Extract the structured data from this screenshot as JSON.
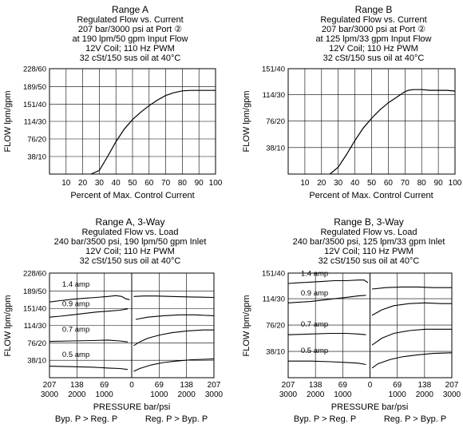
{
  "chart_data": [
    {
      "type": "line",
      "title": "Range A",
      "subtitle_lines": [
        "Regulated Flow vs. Current",
        "207 bar/3000 psi at Port ②",
        "at 190 lpm/50 gpm Input Flow",
        "12V Coil; 110 Hz PWM",
        "32 cSt/150 sus oil at 40°C"
      ],
      "xlabel": "Percent of Max. Control Current",
      "ylabel": "FLOW lpm/gpm",
      "xlim": [
        0,
        100
      ],
      "ylim": [
        0,
        228
      ],
      "x_ticks": [
        "10",
        "20",
        "30",
        "40",
        "50",
        "60",
        "70",
        "80",
        "90",
        "100"
      ],
      "y_ticks": [
        {
          "value": 38,
          "label": "38/10"
        },
        {
          "value": 76,
          "label": "76/20"
        },
        {
          "value": 114,
          "label": "114/30"
        },
        {
          "value": 151,
          "label": "151/40"
        },
        {
          "value": 189,
          "label": "189/50"
        },
        {
          "value": 228,
          "label": "228/60"
        }
      ],
      "grid": true,
      "series": [
        {
          "x": [
            25,
            30,
            35,
            40,
            45,
            50,
            55,
            60,
            65,
            70,
            75,
            80,
            85,
            90,
            95,
            100
          ],
          "y": [
            0,
            8,
            38,
            70,
            97,
            118,
            134,
            148,
            160,
            170,
            176,
            180,
            181,
            181,
            181,
            181
          ]
        }
      ]
    },
    {
      "type": "line",
      "title": "Range B",
      "subtitle_lines": [
        "Regulated Flow vs. Current",
        "207 bar/3000 psi at Port ②",
        "at 125 lpm/33 gpm Input Flow",
        "12V Coil; 110 Hz PWM",
        "32 cSt/150 sus oil at 40°C"
      ],
      "xlabel": "Percent of Max. Control Current",
      "ylabel": "FLOW lpm/gpm",
      "xlim": [
        0,
        100
      ],
      "ylim": [
        0,
        151
      ],
      "x_ticks": [
        "10",
        "20",
        "30",
        "40",
        "50",
        "60",
        "70",
        "80",
        "90",
        "100"
      ],
      "y_ticks": [
        {
          "value": 38,
          "label": "38/10"
        },
        {
          "value": 76,
          "label": "76/20"
        },
        {
          "value": 114,
          "label": "114/30"
        },
        {
          "value": 151,
          "label": "151/40"
        }
      ],
      "grid": true,
      "series": [
        {
          "x": [
            25,
            30,
            35,
            40,
            45,
            50,
            55,
            60,
            65,
            70,
            72,
            75,
            80,
            85,
            90,
            95,
            100
          ],
          "y": [
            0,
            10,
            28,
            48,
            66,
            80,
            92,
            102,
            110,
            118,
            120,
            121,
            121,
            120,
            120,
            120,
            119
          ]
        }
      ]
    },
    {
      "type": "line",
      "title": "Range A, 3-Way",
      "subtitle_lines": [
        "Regulated Flow vs. Load",
        "240 bar/3500 psi, 190 lpm/50 gpm Inlet",
        "12V Coil; 110 Hz PWM",
        "32 cSt/150 sus oil at 40°C"
      ],
      "xlabel": "PRESSURE bar/psi",
      "ylabel": "FLOW lpm/gpm",
      "xlim": [
        -207,
        207
      ],
      "ylim": [
        0,
        228
      ],
      "x_ticks_top": [
        "207",
        "138",
        "69",
        "0",
        "69",
        "138",
        "207"
      ],
      "x_ticks_bottom": [
        "3000",
        "2000",
        "1000",
        "",
        "1000",
        "2000",
        "3000"
      ],
      "y_ticks": [
        {
          "value": 38,
          "label": "38/10"
        },
        {
          "value": 76,
          "label": "76/20"
        },
        {
          "value": 114,
          "label": "114/30"
        },
        {
          "value": 151,
          "label": "151/40"
        },
        {
          "value": 189,
          "label": "189/50"
        },
        {
          "value": 228,
          "label": "228/60"
        }
      ],
      "grid": true,
      "annotations": {
        "left": "Byp. P > Reg. P",
        "right": "Reg. P > Byp. P"
      },
      "series": [
        {
          "name": "1.4 amp",
          "x": [
            -207,
            -180,
            -150,
            -120,
            -90,
            -60,
            -40,
            -25,
            -15,
            -5,
            5,
            30,
            60,
            100,
            150,
            207
          ],
          "y": [
            165,
            168,
            171,
            173,
            175,
            177,
            179,
            177,
            172,
            170,
            177,
            178,
            178,
            177,
            176,
            175
          ]
        },
        {
          "name": "0.9 amp",
          "x": [
            -207,
            -180,
            -150,
            -120,
            -90,
            -60,
            -30,
            -10,
            10,
            40,
            80,
            120,
            160,
            207
          ],
          "y": [
            132,
            134,
            137,
            140,
            143,
            145,
            147,
            150,
            127,
            132,
            135,
            137,
            137,
            135
          ]
        },
        {
          "name": "0.7 amp",
          "x": [
            -207,
            -150,
            -100,
            -60,
            -30,
            -10,
            5,
            20,
            40,
            70,
            100,
            140,
            180,
            207
          ],
          "y": [
            79,
            80,
            81,
            82,
            80,
            78,
            70,
            78,
            86,
            93,
            98,
            102,
            104,
            104
          ]
        },
        {
          "name": "0.5 amp",
          "x": [
            -207,
            -150,
            -100,
            -60,
            -30,
            -10,
            5,
            20,
            50,
            80,
            110,
            150,
            180,
            207
          ],
          "y": [
            25,
            24,
            23,
            21,
            20,
            18,
            14,
            20,
            28,
            33,
            36,
            39,
            40,
            41
          ]
        }
      ]
    },
    {
      "type": "line",
      "title": "Range B, 3-Way",
      "subtitle_lines": [
        "Regulated Flow vs. Load",
        "240 bar/3500 psi, 125 lpm/33 gpm Inlet",
        "12V Coil; 110 Hz PWM",
        "32 cSt/150 sus oil at 40°C"
      ],
      "xlabel": "PRESSURE bar/psi",
      "ylabel": "FLOW lpm/gpm",
      "xlim": [
        -207,
        207
      ],
      "ylim": [
        0,
        151
      ],
      "x_ticks_top": [
        "207",
        "138",
        "69",
        "0",
        "69",
        "138",
        "207"
      ],
      "x_ticks_bottom": [
        "3000",
        "2000",
        "1000",
        "",
        "1000",
        "2000",
        "3000"
      ],
      "y_ticks": [
        {
          "value": 38,
          "label": "38/10"
        },
        {
          "value": 76,
          "label": "76/20"
        },
        {
          "value": 114,
          "label": "114/30"
        },
        {
          "value": 151,
          "label": "151/40"
        }
      ],
      "grid": true,
      "annotations": {
        "left": "Byp. P > Reg. P",
        "right": "Reg. P > Byp. P"
      },
      "series": [
        {
          "name": "1.4 amp",
          "x": [
            -207,
            -180,
            -150,
            -120,
            -90,
            -60,
            -30,
            -15,
            -5,
            5,
            40,
            80,
            120,
            160,
            207
          ],
          "y": [
            136,
            137,
            138,
            139,
            140,
            140,
            141,
            141,
            137,
            128,
            130,
            131,
            131,
            130,
            130
          ]
        },
        {
          "name": "0.9 amp",
          "x": [
            -207,
            -180,
            -150,
            -120,
            -90,
            -60,
            -30,
            -10,
            5,
            30,
            60,
            100,
            140,
            180,
            207
          ],
          "y": [
            108,
            109,
            110,
            112,
            114,
            116,
            118,
            119,
            90,
            98,
            104,
            107,
            108,
            107,
            107
          ]
        },
        {
          "name": "0.7 amp",
          "x": [
            -207,
            -150,
            -100,
            -60,
            -30,
            -10,
            5,
            30,
            60,
            100,
            140,
            180,
            207
          ],
          "y": [
            62,
            63,
            64,
            64,
            63,
            62,
            47,
            57,
            64,
            68,
            70,
            70,
            70
          ]
        },
        {
          "name": "0.5 amp",
          "x": [
            -207,
            -150,
            -100,
            -60,
            -30,
            -10,
            5,
            20,
            50,
            80,
            120,
            160,
            207
          ],
          "y": [
            24,
            24,
            23,
            22,
            21,
            19,
            14,
            20,
            26,
            30,
            33,
            35,
            36
          ]
        }
      ]
    }
  ]
}
